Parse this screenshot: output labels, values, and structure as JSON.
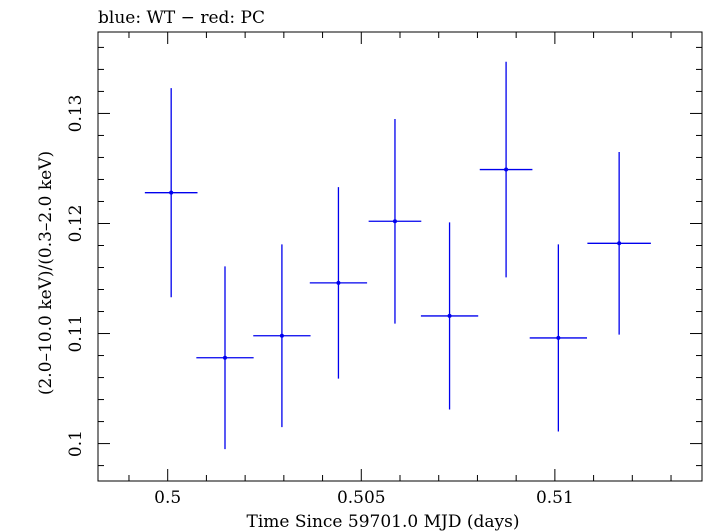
{
  "chart_data": {
    "type": "scatter",
    "title": "blue: WT − red: PC",
    "xlabel": "Time Since 59701.0 MJD (days)",
    "ylabel": "(2.0–10.0 keV)/(0.3–2.0 keV)",
    "xlim": [
      0.4982,
      0.5138
    ],
    "ylim": [
      0.0966,
      0.1374
    ],
    "x_ticks": [
      {
        "value": 0.5,
        "label": "0.5"
      },
      {
        "value": 0.505,
        "label": "0.505"
      },
      {
        "value": 0.51,
        "label": "0.51"
      }
    ],
    "y_ticks": [
      {
        "value": 0.1,
        "label": "0.1"
      },
      {
        "value": 0.11,
        "label": "0.11"
      },
      {
        "value": 0.12,
        "label": "0.12"
      },
      {
        "value": 0.13,
        "label": "0.13"
      }
    ],
    "x_minor_step": 0.001,
    "y_minor_step": 0.002,
    "grid": false,
    "series": [
      {
        "color": "#0000ee",
        "points": [
          {
            "x": 0.50009,
            "xerr": 0.00068,
            "y": 0.1228,
            "yerr": 0.0095
          },
          {
            "x": 0.50148,
            "xerr": 0.00074,
            "y": 0.1078,
            "yerr": 0.0083
          },
          {
            "x": 0.50295,
            "xerr": 0.00074,
            "y": 0.1098,
            "yerr": 0.0083
          },
          {
            "x": 0.50441,
            "xerr": 0.00074,
            "y": 0.1146,
            "yerr": 0.0087
          },
          {
            "x": 0.50587,
            "xerr": 0.00068,
            "y": 0.1202,
            "yerr": 0.0093
          },
          {
            "x": 0.50728,
            "xerr": 0.00074,
            "y": 0.1116,
            "yerr": 0.0085
          },
          {
            "x": 0.50874,
            "xerr": 0.00068,
            "y": 0.1249,
            "yerr": 0.0098
          },
          {
            "x": 0.51009,
            "xerr": 0.00074,
            "y": 0.1096,
            "yerr": 0.0085
          },
          {
            "x": 0.51166,
            "xerr": 0.00082,
            "y": 0.1182,
            "yerr": 0.0083
          }
        ]
      }
    ]
  }
}
